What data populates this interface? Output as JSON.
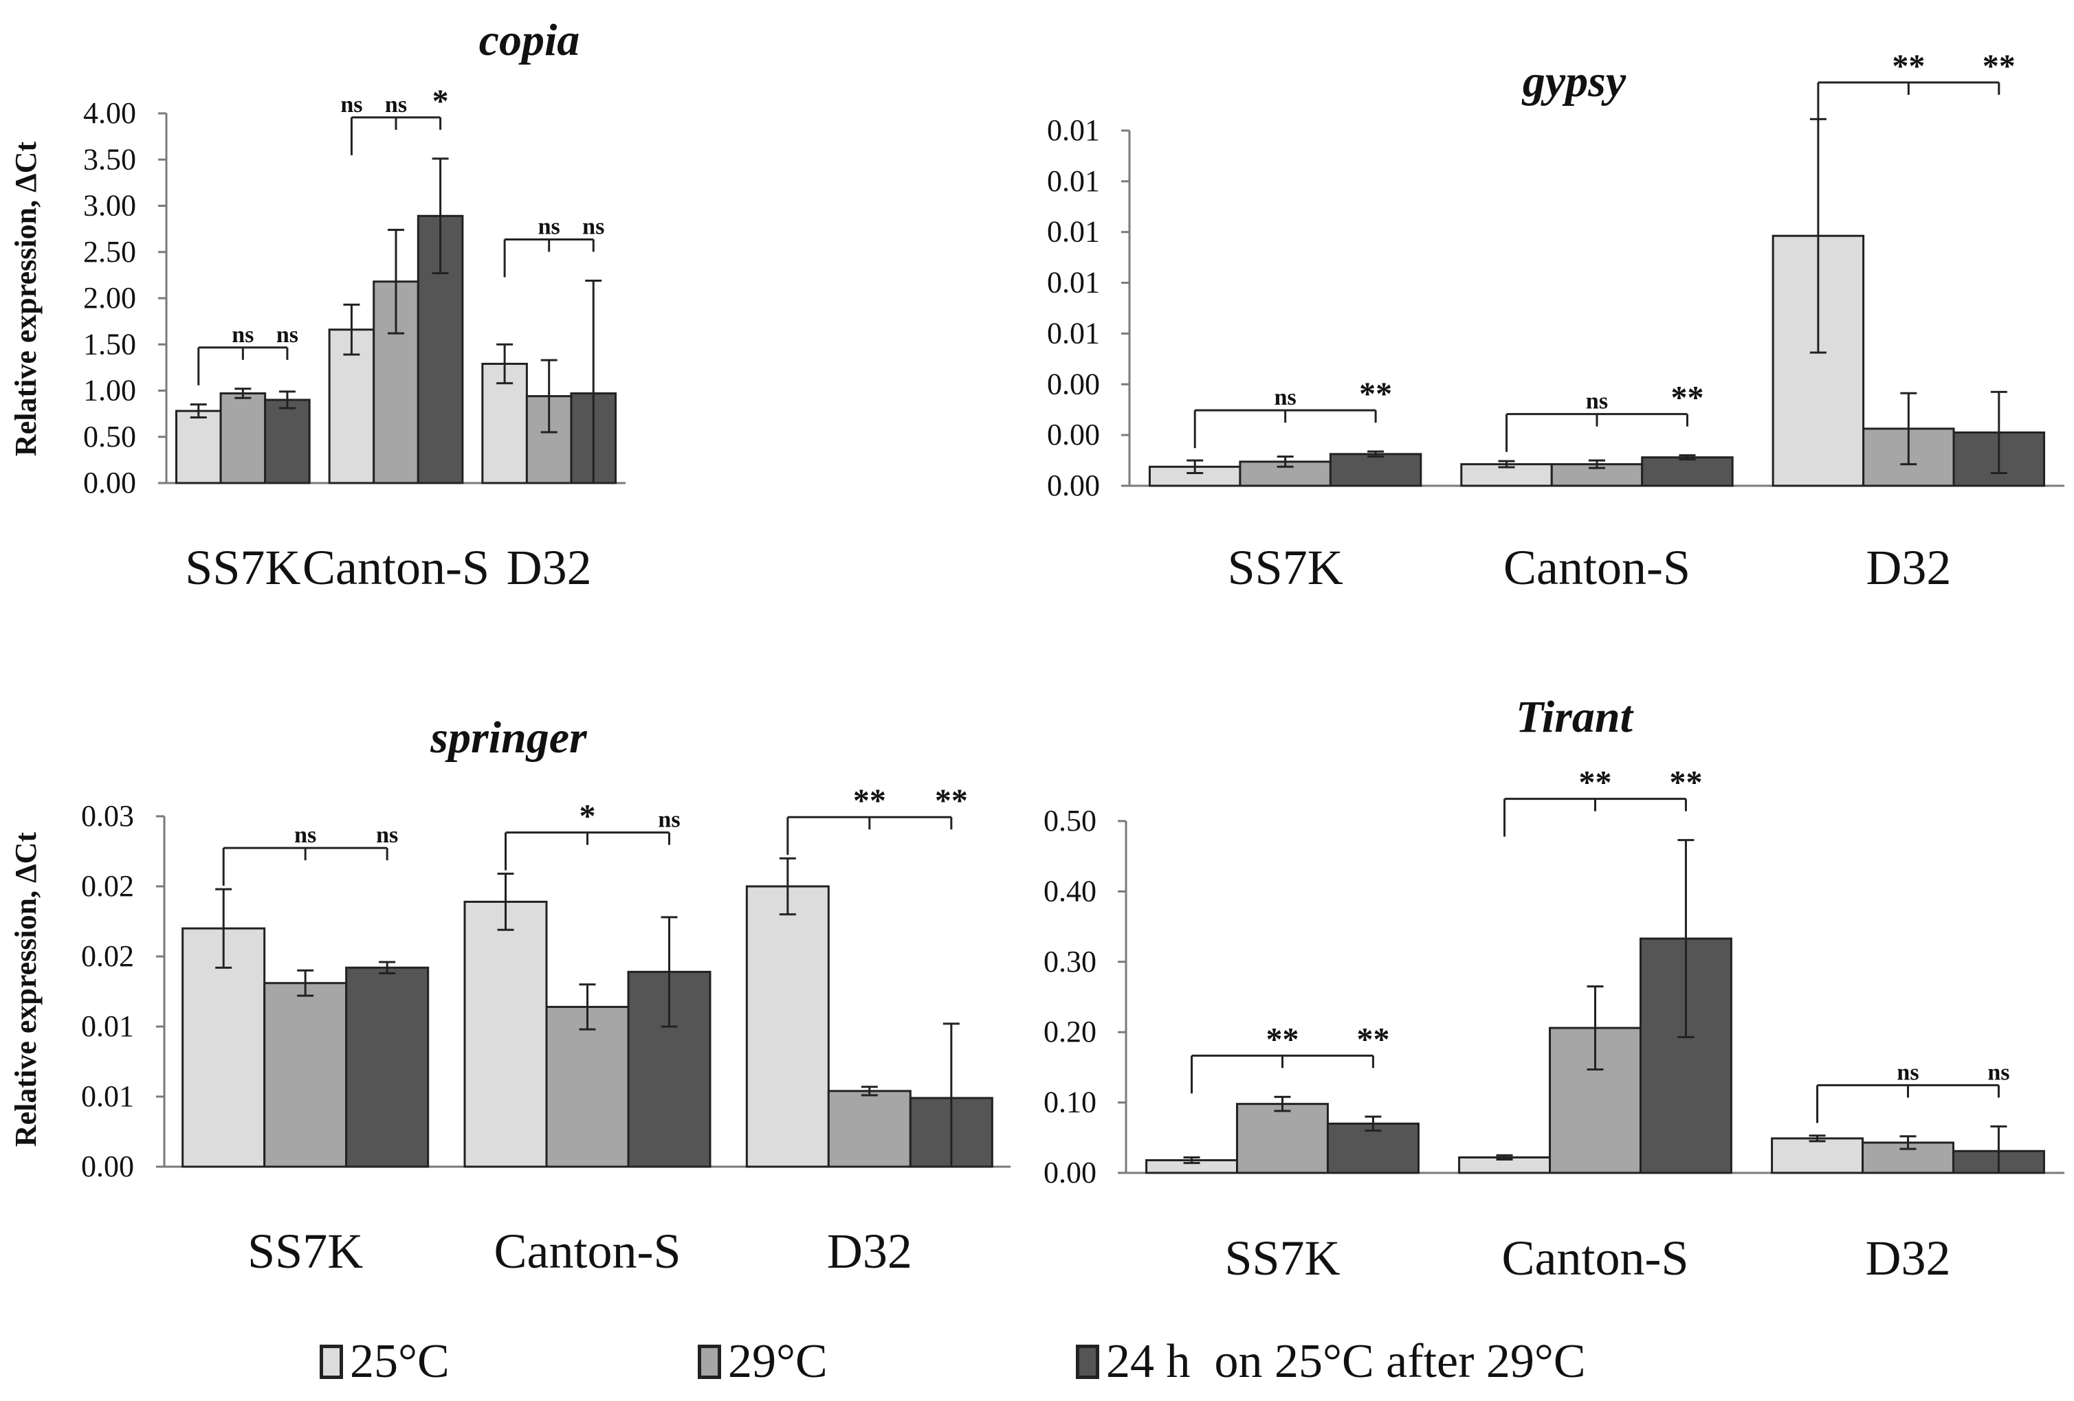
{
  "colors": {
    "s25": "#dcdcdc",
    "s29": "#a6a6a6",
    "s24h": "#555555",
    "axis": "#7a7a7a",
    "text": "#111111"
  },
  "legend": [
    {
      "name": "25°C",
      "label": "25°C",
      "color": "#dcdcdc"
    },
    {
      "name": "29°C",
      "label": "29°C",
      "color": "#a6a6a6"
    },
    {
      "name": "24h",
      "label": "24 h  on 25°C after 29°C",
      "color": "#555555"
    }
  ],
  "chart_data": [
    {
      "id": "copia",
      "type": "bar",
      "title": "copia",
      "ylabel": "Relative expression, ΔCt",
      "categories": [
        "SS7K",
        "Canton-S",
        "D32"
      ],
      "ylim": [
        0,
        4
      ],
      "yticks": [
        0,
        0.5,
        1,
        1.5,
        2,
        2.5,
        3,
        3.5,
        4
      ],
      "ytick_labels": [
        "0.00",
        "0.50",
        "1.00",
        "1.50",
        "2.00",
        "2.50",
        "3.00",
        "3.50",
        "4.00"
      ],
      "series": [
        {
          "name": "25°C",
          "values": [
            0.78,
            1.66,
            1.29
          ],
          "errors": [
            0.07,
            0.27,
            0.21
          ]
        },
        {
          "name": "29°C",
          "values": [
            0.97,
            2.18,
            0.94
          ],
          "errors": [
            0.05,
            0.56,
            0.39
          ]
        },
        {
          "name": "24 h on 25°C after 29°C",
          "values": [
            0.9,
            2.89,
            0.97
          ],
          "errors": [
            0.09,
            0.62,
            1.22
          ]
        }
      ],
      "significance": [
        {
          "group": 0,
          "labels": [
            "ns",
            "ns"
          ]
        },
        {
          "group": 1,
          "labels": [
            "ns",
            "ns",
            "*"
          ]
        },
        {
          "group": 2,
          "labels": [
            "ns",
            "ns"
          ]
        }
      ]
    },
    {
      "id": "gypsy",
      "type": "bar",
      "title": "gypsy",
      "ylabel": "",
      "categories": [
        "SS7K",
        "Canton-S",
        "D32"
      ],
      "ylim": [
        0,
        0.014
      ],
      "yticks": [
        0,
        0.002,
        0.004,
        0.006,
        0.008,
        0.01,
        0.012,
        0.014
      ],
      "ytick_labels": [
        "0.00",
        "0.00",
        "0.00",
        "0.01",
        "0.01",
        "0.01",
        "0.01",
        "0.01"
      ],
      "series": [
        {
          "name": "25°C",
          "values": [
            0.00075,
            0.00085,
            0.00985
          ],
          "errors": [
            0.00025,
            0.00012,
            0.0046
          ]
        },
        {
          "name": "29°C",
          "values": [
            0.00095,
            0.00085,
            0.00225
          ],
          "errors": [
            0.0002,
            0.00015,
            0.0014
          ]
        },
        {
          "name": "24 h on 25°C after 29°C",
          "values": [
            0.00125,
            0.00112,
            0.0021
          ],
          "errors": [
            0.0001,
            8e-05,
            0.0016
          ]
        }
      ],
      "significance": [
        {
          "group": 0,
          "labels": [
            "ns",
            "**"
          ]
        },
        {
          "group": 1,
          "labels": [
            "ns",
            "**"
          ]
        },
        {
          "group": 2,
          "labels": [
            "**",
            "**"
          ]
        }
      ]
    },
    {
      "id": "springer",
      "type": "bar",
      "title": "springer",
      "ylabel": "Relative expression, ΔCt",
      "categories": [
        "SS7K",
        "Canton-S",
        "D32"
      ],
      "ylim": [
        0,
        0.025
      ],
      "yticks": [
        0,
        0.005,
        0.01,
        0.015,
        0.02,
        0.025
      ],
      "ytick_labels": [
        "0.00",
        "0.01",
        "0.01",
        "0.02",
        "0.02",
        "0.03"
      ],
      "series": [
        {
          "name": "25°C",
          "values": [
            0.017,
            0.0189,
            0.02
          ],
          "errors": [
            0.0028,
            0.002,
            0.002
          ]
        },
        {
          "name": "29°C",
          "values": [
            0.0131,
            0.0114,
            0.0054
          ],
          "errors": [
            0.0009,
            0.0016,
            0.0003
          ]
        },
        {
          "name": "24 h on 25°C after 29°C",
          "values": [
            0.0142,
            0.0139,
            0.0049
          ],
          "errors": [
            0.0004,
            0.0039,
            0.0053
          ]
        }
      ],
      "significance": [
        {
          "group": 0,
          "labels": [
            "ns",
            "ns"
          ]
        },
        {
          "group": 1,
          "labels": [
            "*",
            "ns"
          ]
        },
        {
          "group": 2,
          "labels": [
            "**",
            "**"
          ]
        }
      ]
    },
    {
      "id": "tirant",
      "type": "bar",
      "title": "Tirant",
      "ylabel": "",
      "categories": [
        "SS7K",
        "Canton-S",
        "D32"
      ],
      "ylim": [
        0,
        0.5
      ],
      "yticks": [
        0,
        0.1,
        0.2,
        0.3,
        0.4,
        0.5
      ],
      "ytick_labels": [
        "0.00",
        "0.10",
        "0.20",
        "0.30",
        "0.40",
        "0.50"
      ],
      "series": [
        {
          "name": "25°C",
          "values": [
            0.018,
            0.022,
            0.049
          ],
          "errors": [
            0.004,
            0.003,
            0.004
          ]
        },
        {
          "name": "29°C",
          "values": [
            0.098,
            0.206,
            0.043
          ],
          "errors": [
            0.01,
            0.059,
            0.009
          ]
        },
        {
          "name": "24 h on 25°C after 29°C",
          "values": [
            0.07,
            0.333,
            0.031
          ],
          "errors": [
            0.01,
            0.14,
            0.035
          ]
        }
      ],
      "significance": [
        {
          "group": 0,
          "labels": [
            "**",
            "**"
          ]
        },
        {
          "group": 1,
          "labels": [
            "**",
            "**"
          ]
        },
        {
          "group": 2,
          "labels": [
            "ns",
            "ns"
          ]
        }
      ]
    }
  ]
}
